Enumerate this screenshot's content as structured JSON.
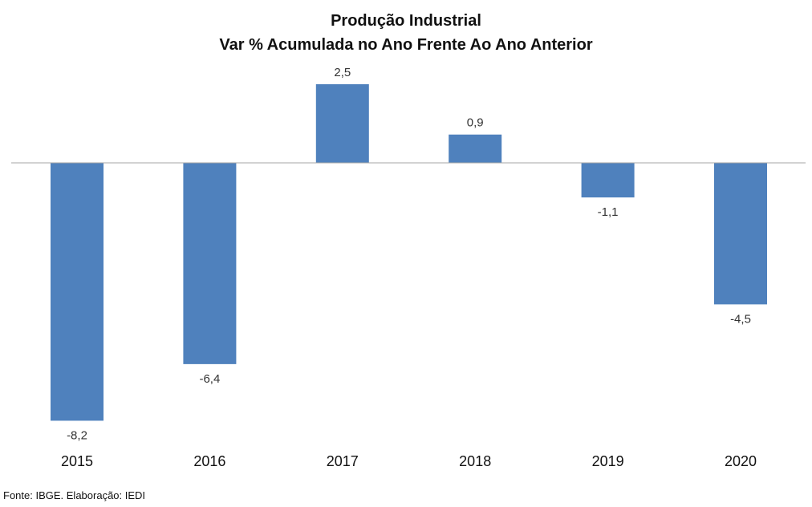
{
  "chart_data": {
    "type": "bar",
    "title": "Produção Industrial",
    "subtitle": "Var % Acumulada no Ano Frente Ao Ano Anterior",
    "categories": [
      "2015",
      "2016",
      "2017",
      "2018",
      "2019",
      "2020"
    ],
    "values": [
      -8.2,
      -6.4,
      2.5,
      0.9,
      -1.1,
      -4.5
    ],
    "data_labels": [
      "-8,2",
      "-6,4",
      "2,5",
      "0,9",
      "-1,1",
      "-4,5"
    ],
    "xlabel": "",
    "ylabel": "",
    "grid": false,
    "legend": "none",
    "bar_color": "#4F81BD",
    "axis_color": "#A6A6A6"
  },
  "footer": {
    "source": "Fonte: IBGE. Elaboração: IEDI"
  }
}
